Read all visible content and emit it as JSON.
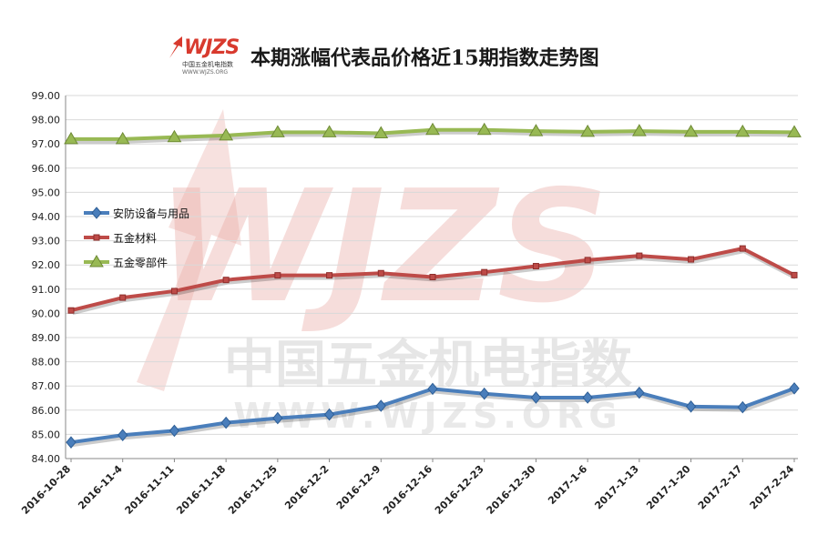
{
  "header": {
    "title": "本期涨幅代表品价格近15期指数走势图",
    "logo_text": "WJZS",
    "logo_subtitle": "中国五金机电指数",
    "logo_url": "WWW.WJZS.ORG"
  },
  "watermark": {
    "big_letters": "WJZS",
    "cn_text": "中国五金机电指数",
    "url_text": "WWW.WJZS.ORG"
  },
  "chart_data": {
    "type": "line",
    "title": "本期涨幅代表品价格近15期指数走势图",
    "xlabel": "",
    "ylabel": "",
    "categories": [
      "2016-10-28",
      "2016-11-4",
      "2016-11-11",
      "2016-11-18",
      "2016-11-25",
      "2016-12-2",
      "2016-12-9",
      "2016-12-16",
      "2016-12-23",
      "2016-12-30",
      "2017-1-6",
      "2017-1-13",
      "2017-1-20",
      "2017-2-17",
      "2017-2-24"
    ],
    "ylim": [
      84.0,
      99.0
    ],
    "yticks": [
      "84.00",
      "85.00",
      "86.00",
      "87.00",
      "88.00",
      "89.00",
      "90.00",
      "91.00",
      "92.00",
      "93.00",
      "94.00",
      "95.00",
      "96.00",
      "97.00",
      "98.00",
      "99.00"
    ],
    "grid": true,
    "legend_position": "left",
    "series": [
      {
        "name": "安防设备与用品",
        "color": "#4a7ebb",
        "marker": "diamond",
        "values": [
          84.67,
          84.97,
          85.15,
          85.48,
          85.67,
          85.82,
          86.18,
          86.88,
          86.68,
          86.52,
          86.52,
          86.72,
          86.15,
          86.12,
          86.9
        ]
      },
      {
        "name": "五金材料",
        "color": "#be4b48",
        "marker": "square",
        "values": [
          90.12,
          90.65,
          90.92,
          91.38,
          91.57,
          91.57,
          91.66,
          91.5,
          91.7,
          91.95,
          92.2,
          92.38,
          92.23,
          92.68,
          91.58
        ]
      },
      {
        "name": "五金零部件",
        "color": "#98b954",
        "marker": "triangle",
        "values": [
          97.2,
          97.2,
          97.28,
          97.35,
          97.48,
          97.48,
          97.44,
          97.58,
          97.58,
          97.53,
          97.5,
          97.53,
          97.5,
          97.5,
          97.48
        ]
      }
    ]
  }
}
